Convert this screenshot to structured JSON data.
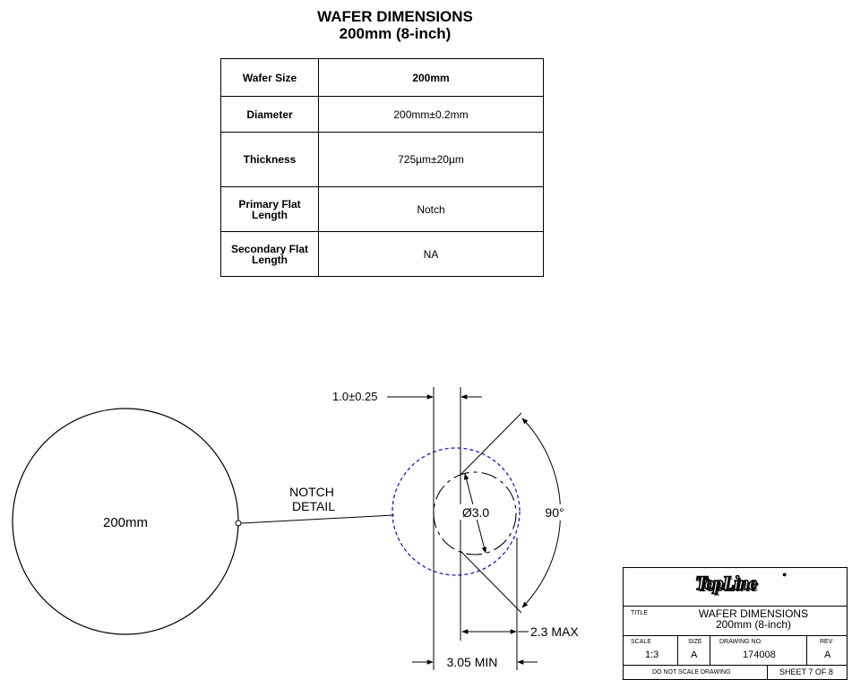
{
  "title": {
    "line1": "WAFER DIMENSIONS",
    "line2": "200mm (8-inch)"
  },
  "specs": {
    "rows": [
      {
        "label": "Wafer Size",
        "value": "200mm"
      },
      {
        "label": "Diameter",
        "value": "200mm±0.2mm"
      },
      {
        "label": "Thickness",
        "value": "725µm±20µm"
      },
      {
        "label": "Primary Flat Length",
        "value": "Notch"
      },
      {
        "label": "Secondary Flat Length",
        "value": "NA"
      }
    ]
  },
  "drawing": {
    "wafer_label": "200mm",
    "notch_label_1": "NOTCH",
    "notch_label_2": "DETAIL",
    "dim_notch_width": "1.0±0.25",
    "dim_diameter": "Ø3.0",
    "dim_angle": "90°",
    "dim_depth": "2.3 MAX",
    "dim_min": "3.05 MIN",
    "detail_circle_color": "#1a1acc"
  },
  "title_block": {
    "logo": "TopLine",
    "title_label": "TITLE",
    "title_line1": "WAFER DIMENSIONS",
    "title_line2": "200mm (8-inch)",
    "scale_label": "SCALE",
    "scale_value": "1:3",
    "size_label": "SIZE",
    "size_value": "A",
    "drawing_no_label": "DRAWING NO.",
    "drawing_no_value": "174008",
    "rev_label": "REV",
    "rev_value": "A",
    "note": "DO NOT SCALE DRAWING",
    "sheet": "SHEET 7 OF 8"
  }
}
